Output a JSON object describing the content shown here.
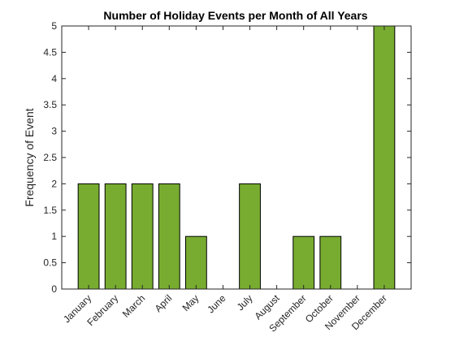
{
  "chart_data": {
    "type": "bar",
    "title": "Number of Holiday Events per Month of All Years",
    "xlabel": "",
    "ylabel": "Frequency of Event",
    "categories": [
      "January",
      "February",
      "March",
      "April",
      "May",
      "June",
      "July",
      "August",
      "September",
      "October",
      "November",
      "December"
    ],
    "values": [
      2,
      2,
      2,
      2,
      1,
      0,
      2,
      0,
      1,
      1,
      0,
      5
    ],
    "ylim": [
      0,
      5
    ],
    "yticks": [
      0,
      0.5,
      1,
      1.5,
      2,
      2.5,
      3,
      3.5,
      4,
      4.5,
      5
    ],
    "grid": false,
    "legend": "none",
    "bar_color": "#77ac30",
    "bar_edge_color": "#000000",
    "axis_color": "#262626"
  }
}
